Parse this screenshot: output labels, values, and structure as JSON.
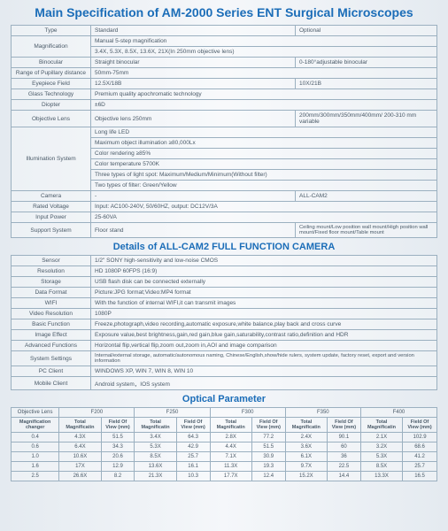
{
  "title": "Main Specification of AM-2000 Series ENT Surgical Microscopes",
  "spec_headers": {
    "std": "Standard",
    "opt": "Optional"
  },
  "specs": {
    "type": "Type",
    "magnification": "Magnification",
    "mag_r1": "Manual 5-step magnification",
    "mag_r2": "3.4X, 5.3X, 8.5X, 13.6X, 21X(In 250mm objective lens)",
    "binocular": "Binocular",
    "bin_std": "Straight binocular",
    "bin_opt": "0-180°adjustable binocular",
    "pupillary": "Range of Pupillary distance",
    "pupillary_v": "50mm-75mm",
    "eyepiece": "Eyepiece Field",
    "eyepiece_std": "12.5X/18B",
    "eyepiece_opt": "10X/21B",
    "glass": "Glass Technology",
    "glass_v": "Premium quality apochromatic technology",
    "diopter": "Diopter",
    "diopter_v": "±6D",
    "objlens": "Objective Lens",
    "objlens_std": "Objective lens 250mm",
    "objlens_opt": "200mm/300mm/350mm/400mm/ 200-310 mm variable",
    "illum": "Illumination System",
    "illum_1": "Long life LED",
    "illum_2": "Maximum object illumination ≥80,000Lx",
    "illum_3": "Color rendering ≥85%",
    "illum_4": "Color temperature 5700K",
    "illum_5": "Three types of light spot: Maximum/Medium/Minimum(Without filter)",
    "illum_6": "Two types of filter: Green/Yellow",
    "camera": "Camera",
    "camera_std": "-",
    "camera_opt": "ALL-CAM2",
    "voltage": "Rated Voltage",
    "voltage_v": "Input: AC100-240V, 50/60HZ, output: DC12V/3A",
    "power": "Input Power",
    "power_v": "25-60VA",
    "support": "Support System",
    "support_std": "Floor stand",
    "support_opt": "Ceiling mount/Low position wall mount/High position wall mount/Fixed floor mount/Table mount"
  },
  "cam_title": "Details of ALL-CAM2 FULL FUNCTION CAMERA",
  "cam": {
    "sensor": "Sensor",
    "sensor_v": "1/2\" SONY high-sensitivity and low-noise CMOS",
    "resolution": "Resolution",
    "resolution_v": "HD 1080P 60FPS (16:9)",
    "storage": "Storage",
    "storage_v": "USB flash disk can be connected externally",
    "format": "Data Format",
    "format_v": "Picture:JPG format;Video:MP4 format",
    "wifi": "WIFI",
    "wifi_v": "With the function of internal WIFI,it can transmit images",
    "vidres": "Video Resolution",
    "vidres_v": "1080P",
    "basic": "Basic Function",
    "basic_v": "Freeze,photograph,video recording,automatic exposure,white balance,play back and cross curve",
    "effect": "Image Effect",
    "effect_v": "Exposure value,best brightness,gain,red gain,blue gain,saturability,contrast ratio,definition and HDR",
    "advanced": "Advanced Functions",
    "advanced_v": "Horizontal flip,vertical flip,zoom out,zoom in,AOI and image comparison",
    "settings": "System Settings",
    "settings_v": "Internal/external storage, automatic/autonomous naming, Chinese/English,show/hide rulers, system update, factory reset, export and version information",
    "pc": "PC Client",
    "pc_v": "WINDOWS XP, WIN 7, WIN 8, WIN 10",
    "mobile": "Mobile Client",
    "mobile_v": "Android system，IOS system"
  },
  "optical_title": "Optical Parameter",
  "optical": {
    "col_objlens": "Objective Lens",
    "col_magchg": "Magnification changer",
    "col_totalmag": "Total Magnificatin",
    "col_fov": "Field Of View (mm)",
    "lenses": [
      "F200",
      "F250",
      "F300",
      "F350",
      "F400"
    ],
    "rows": [
      {
        "m": "0.4",
        "v": [
          "4.3X",
          "51.5",
          "3.4X",
          "64.3",
          "2.8X",
          "77.2",
          "2.4X",
          "90.1",
          "2.1X",
          "102.9"
        ]
      },
      {
        "m": "0.6",
        "v": [
          "6.4X",
          "34.3",
          "5.3X",
          "42.9",
          "4.4X",
          "51.5",
          "3.6X",
          "60",
          "3.2X",
          "68.6"
        ]
      },
      {
        "m": "1.0",
        "v": [
          "10.6X",
          "20.6",
          "8.5X",
          "25.7",
          "7.1X",
          "30.9",
          "6.1X",
          "36",
          "5.3X",
          "41.2"
        ]
      },
      {
        "m": "1.6",
        "v": [
          "17X",
          "12.9",
          "13.6X",
          "16.1",
          "11.3X",
          "19.3",
          "9.7X",
          "22.5",
          "8.5X",
          "25.7"
        ]
      },
      {
        "m": "2.5",
        "v": [
          "26.6X",
          "8.2",
          "21.3X",
          "10.3",
          "17.7X",
          "12.4",
          "15.2X",
          "14.4",
          "13.3X",
          "16.5"
        ]
      }
    ]
  }
}
